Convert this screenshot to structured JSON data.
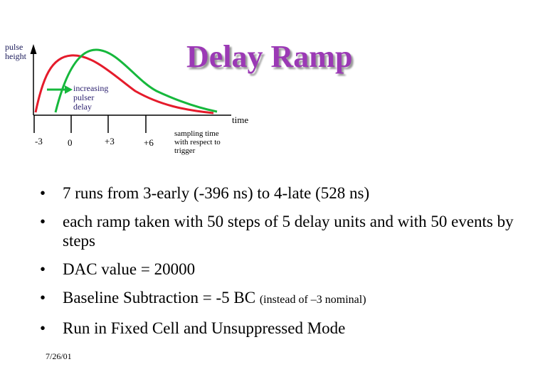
{
  "title": "Delay Ramp",
  "diagram": {
    "y_axis_label": [
      "pulse",
      "height"
    ],
    "delay_label": [
      "increasing",
      "pulser",
      "delay"
    ],
    "x_axis_label": "time",
    "tick_labels": [
      "-3",
      "0",
      "+3",
      "+6"
    ],
    "sampling_label": [
      "sampling time",
      "with respect to",
      "trigger"
    ],
    "colors": {
      "early_curve": "#e51b2b",
      "late_curve": "#16b83c",
      "arrow": "#16b83c",
      "title": "#9b39b5"
    }
  },
  "bullets": [
    {
      "text": "7 runs from 3-early (-396 ns) to 4-late (528 ns)"
    },
    {
      "text": "each ramp taken with 50 steps of 5 delay units and with 50 events by steps"
    },
    {
      "text": "DAC value = 20000"
    },
    {
      "text": "Baseline Subtraction = -5 BC ",
      "small": "(instead of –3 nominal)"
    },
    {
      "text": "Run in Fixed Cell and Unsuppressed Mode"
    }
  ],
  "footer_date": "7/26/01"
}
